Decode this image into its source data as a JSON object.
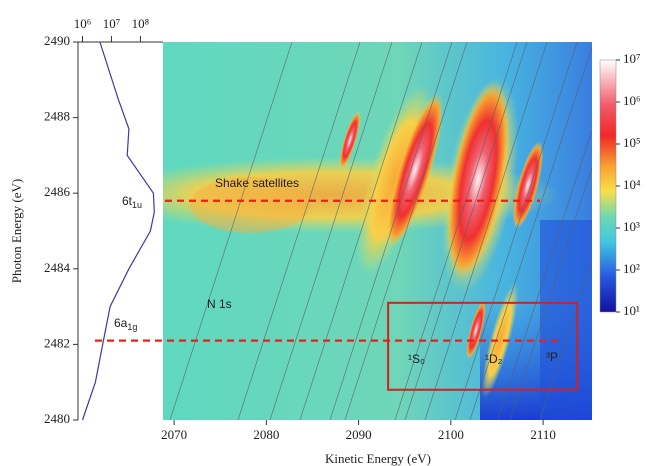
{
  "chart_data": {
    "type": "heatmap",
    "x_label": "Kinetic Energy (eV)",
    "y_label": "Photon Energy (eV)",
    "xlim": [
      2068.8,
      2115.3
    ],
    "xticks": [
      2070,
      2080,
      2090,
      2100,
      2110
    ],
    "ylim": [
      2480,
      2490
    ],
    "yticks": [
      2480,
      2482,
      2484,
      2486,
      2488,
      2490
    ],
    "colorbar": {
      "scale": "log",
      "lim": [
        10,
        10000000
      ],
      "ticks": [
        {
          "value": 10,
          "label": "10¹"
        },
        {
          "value": 100,
          "label": "10²"
        },
        {
          "value": 1000,
          "label": "10³"
        },
        {
          "value": 10000,
          "label": "10⁴"
        },
        {
          "value": 100000,
          "label": "10⁵"
        },
        {
          "value": 1000000,
          "label": "10⁶"
        },
        {
          "value": 10000000,
          "label": "10⁷"
        }
      ]
    },
    "profile": {
      "scale": "log",
      "color": "#3a3aa8",
      "xlim": [
        700000,
        600000000
      ],
      "xticks": [
        {
          "value": 1000000,
          "label": "10⁶"
        },
        {
          "value": 10000000,
          "label": "10⁷"
        },
        {
          "value": 100000000,
          "label": "10⁸"
        }
      ],
      "energy": [
        2480,
        2481,
        2482,
        2483,
        2484,
        2485,
        2485.5,
        2486,
        2487,
        2487.7,
        2488.5,
        2490
      ],
      "intensity": [
        1000000,
        2800000,
        5000000,
        9000000,
        40000000,
        220000000,
        300000000,
        280000000,
        35000000,
        40000000,
        17000000,
        4000000
      ]
    },
    "reference_lines": {
      "color": "#e8201a",
      "y": [
        2485.8,
        2482.1
      ]
    },
    "box": {
      "color": "#d42020",
      "x": [
        2093.2,
        2113.7
      ],
      "y": [
        2480.8,
        2483.1
      ]
    },
    "annotations": {
      "shake": "Shake satellites",
      "n1s": "N 1s",
      "s0": "¹S₀",
      "d2": "¹D₂",
      "p3": "³P",
      "t1u": {
        "main": "6t",
        "sub": "1u"
      },
      "a1g": {
        "main": "6a",
        "sub": "1g"
      }
    }
  }
}
